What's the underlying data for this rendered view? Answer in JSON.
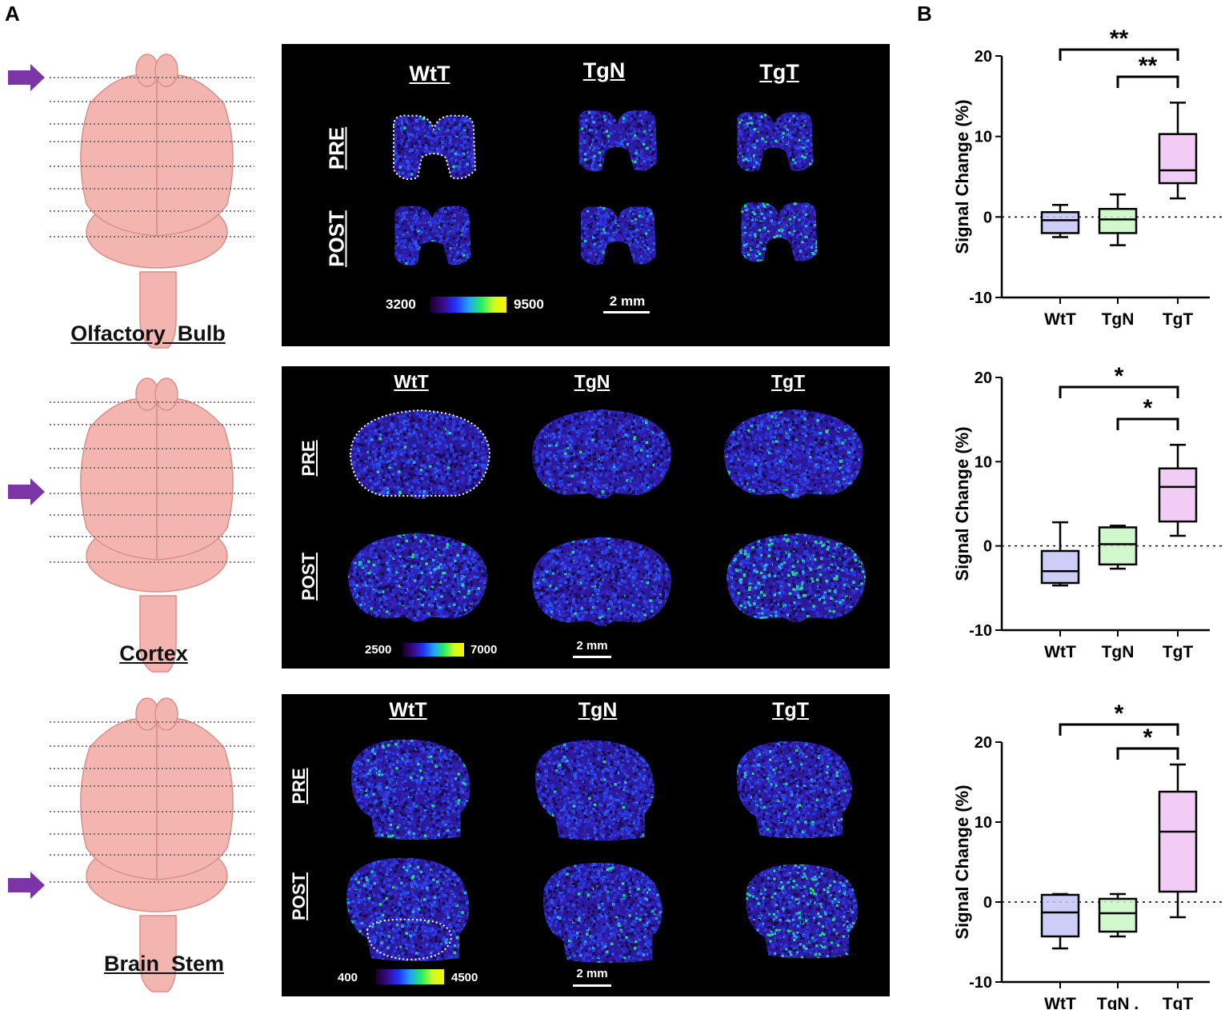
{
  "panels": {
    "a": "A",
    "b": "B"
  },
  "rows": [
    {
      "region": "Olfactory  Bulb",
      "cols": [
        "WtT",
        "TgN",
        "TgT"
      ],
      "pre": "PRE",
      "post": "POST",
      "cb_min": "3200",
      "cb_max": "9500",
      "scale": "2 mm"
    },
    {
      "region": "Cortex",
      "cols": [
        "WtT",
        "TgN",
        "TgT"
      ],
      "pre": "PRE",
      "post": "POST",
      "cb_min": "2500",
      "cb_max": "7000",
      "scale": "2 mm"
    },
    {
      "region": "Brain  Stem",
      "cols": [
        "WtT",
        "TgN",
        "TgT"
      ],
      "pre": "PRE",
      "post": "POST",
      "cb_min": "400",
      "cb_max": "4500",
      "scale": "2 mm"
    }
  ],
  "colors": {
    "WtT": "#c5c4f6",
    "TgN": "#c9f6c4",
    "TgT": "#f1c3f3",
    "arrow": "#7b35a5",
    "brain": "#f2b5b0"
  },
  "chart_data": [
    {
      "type": "box",
      "ylabel": "Signal Change (%)",
      "categories": [
        "WtT",
        "TgN",
        "TgT"
      ],
      "ylim": [
        -10,
        20
      ],
      "yticks": [
        -10,
        0,
        10,
        20
      ],
      "boxes": [
        {
          "min": -2.5,
          "q1": -2.0,
          "median": -0.4,
          "q3": 0.6,
          "max": 1.5
        },
        {
          "min": -3.5,
          "q1": -2.0,
          "median": -0.3,
          "q3": 1.0,
          "max": 2.8
        },
        {
          "min": 2.3,
          "q1": 4.2,
          "median": 5.8,
          "q3": 10.3,
          "max": 14.2
        }
      ],
      "significance": [
        {
          "from": "WtT",
          "to": "TgT",
          "label": "**"
        },
        {
          "from": "TgN",
          "to": "TgT",
          "label": "**"
        }
      ]
    },
    {
      "type": "box",
      "ylabel": "Signal Change (%)",
      "categories": [
        "WtT",
        "TgN",
        "TgT"
      ],
      "ylim": [
        -10,
        20
      ],
      "yticks": [
        -10,
        0,
        10,
        20
      ],
      "boxes": [
        {
          "min": -4.7,
          "q1": -4.4,
          "median": -3.0,
          "q3": -0.6,
          "max": 2.8
        },
        {
          "min": -2.7,
          "q1": -2.2,
          "median": 0.2,
          "q3": 2.2,
          "max": 2.4
        },
        {
          "min": 1.2,
          "q1": 2.9,
          "median": 7.0,
          "q3": 9.2,
          "max": 12.0
        }
      ],
      "significance": [
        {
          "from": "WtT",
          "to": "TgT",
          "label": "*"
        },
        {
          "from": "TgN",
          "to": "TgT",
          "label": "*"
        }
      ]
    },
    {
      "type": "box",
      "ylabel": "Signal Change (%)",
      "categories": [
        "WtT",
        "TgN",
        "TgT"
      ],
      "category_labels": [
        "WtT",
        "TgN .",
        "TgT"
      ],
      "ylim": [
        -10,
        20
      ],
      "yticks": [
        -10,
        0,
        10,
        20
      ],
      "boxes": [
        {
          "min": -5.8,
          "q1": -4.3,
          "median": -1.3,
          "q3": 0.9,
          "max": 1.0
        },
        {
          "min": -4.3,
          "q1": -3.7,
          "median": -1.4,
          "q3": 0.4,
          "max": 1.0
        },
        {
          "min": -1.9,
          "q1": 1.3,
          "median": 8.8,
          "q3": 13.8,
          "max": 17.2
        }
      ],
      "significance": [
        {
          "from": "WtT",
          "to": "TgT",
          "label": "*"
        },
        {
          "from": "TgN",
          "to": "TgT",
          "label": "*"
        }
      ]
    }
  ]
}
